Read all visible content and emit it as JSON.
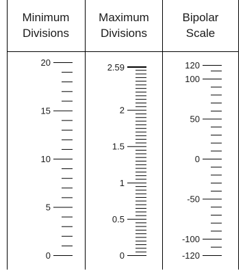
{
  "columns": [
    {
      "id": "minimum-divisions",
      "header": [
        "Minimum",
        "Divisions"
      ],
      "range": [
        0,
        20
      ],
      "labels": [
        "20",
        "15",
        "10",
        "5",
        "0"
      ],
      "label_values": [
        20,
        15,
        10,
        5,
        0
      ],
      "minor_step": 1
    },
    {
      "id": "maximum-divisions",
      "header": [
        "Maximum",
        "Divisions"
      ],
      "range": [
        0,
        2.59
      ],
      "labels": [
        "2.59",
        "2",
        "1.5",
        "1",
        "0.5",
        "0"
      ],
      "label_values": [
        2.59,
        2,
        1.5,
        1,
        0.5,
        0
      ],
      "minor_step": 0.05
    },
    {
      "id": "bipolar-scale",
      "header": [
        "Bipolar",
        "Scale"
      ],
      "range": [
        -120,
        120
      ],
      "labels": [
        "120",
        "100",
        "50",
        "0",
        "-50",
        "-100",
        "-120"
      ],
      "label_values": [
        120,
        100,
        50,
        0,
        -50,
        -100,
        -120
      ],
      "minor_step": 10
    }
  ]
}
